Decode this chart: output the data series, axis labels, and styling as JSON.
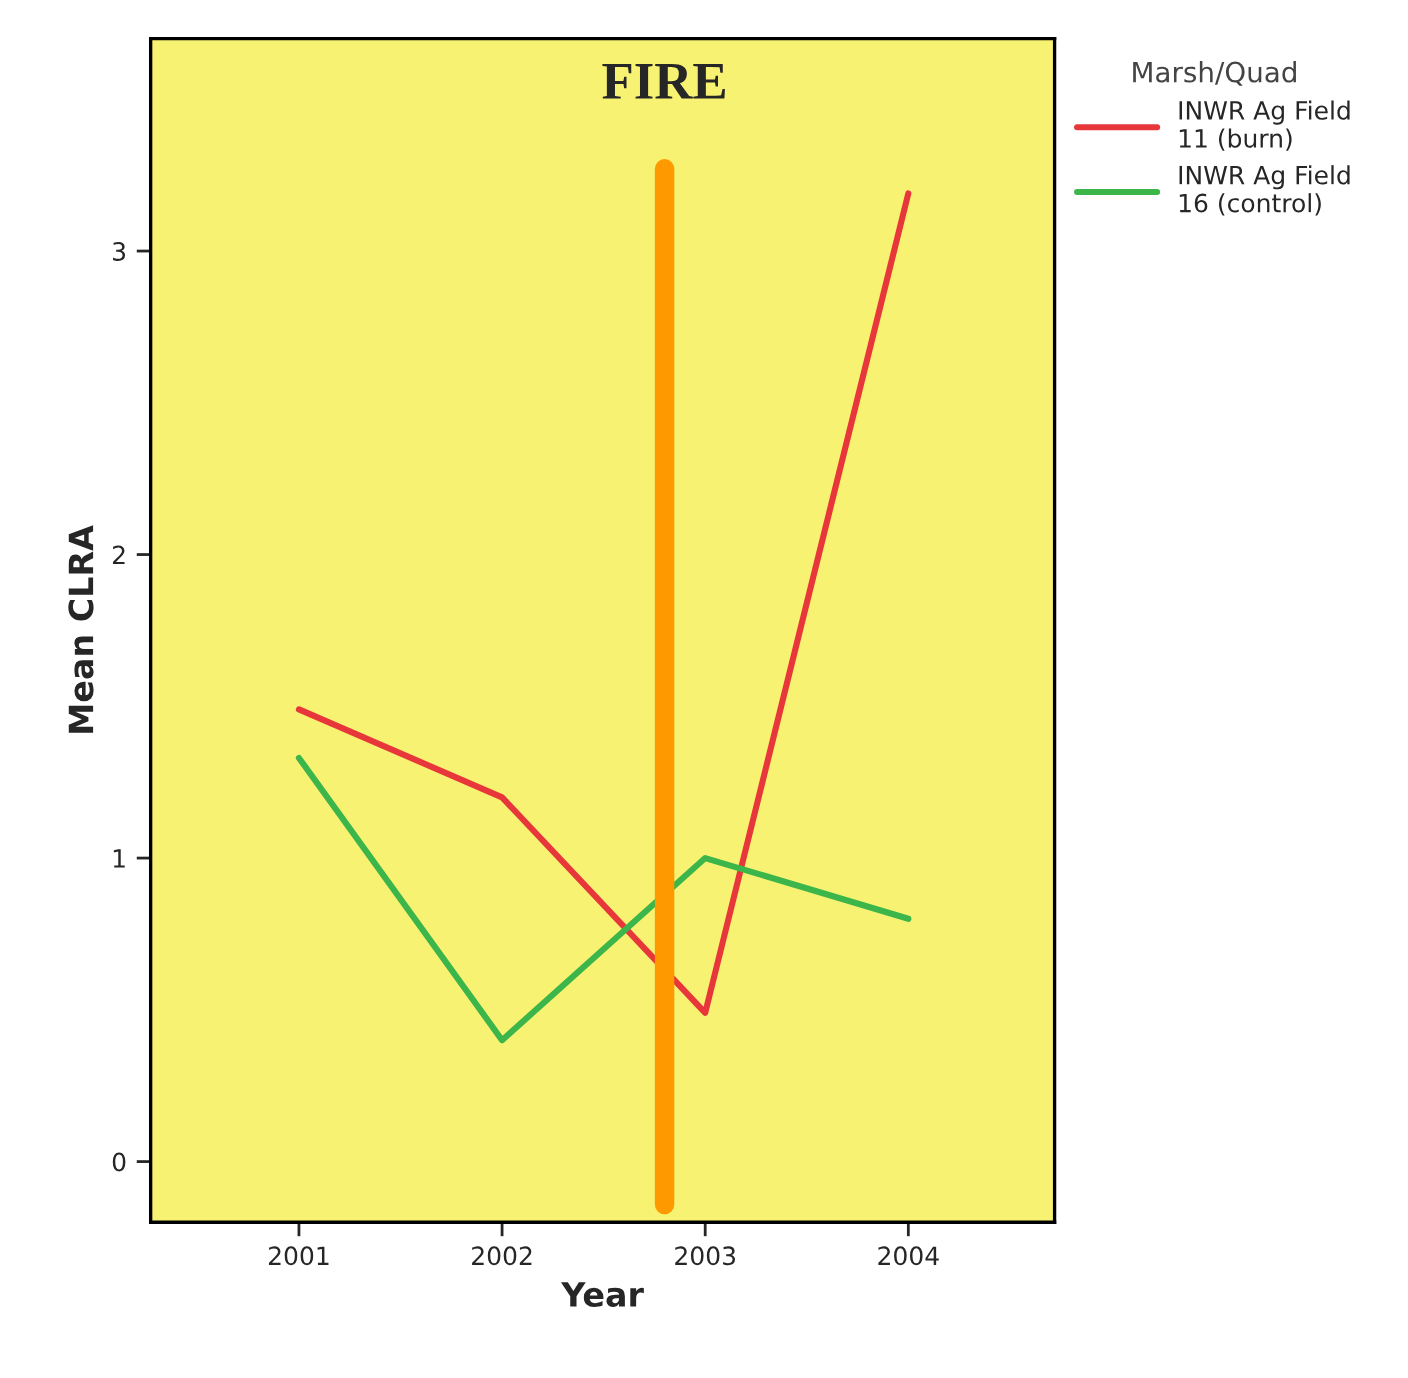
{
  "chart_data": {
    "type": "line",
    "xlabel": "Year",
    "ylabel": "Mean CLRA",
    "legend_title": "Marsh/Quad",
    "x": [
      2001,
      2002,
      2003,
      2004
    ],
    "xlim": [
      2000.27,
      2004.72
    ],
    "xticks": [
      2001,
      2002,
      2003,
      2004
    ],
    "ylim": [
      -0.2,
      3.7
    ],
    "yticks": [
      0,
      1,
      2,
      3
    ],
    "series": [
      {
        "name": "INWR Ag Field 11 (burn)",
        "color": "#e8373a",
        "values": [
          1.49,
          1.2,
          0.49,
          3.19
        ]
      },
      {
        "name": "INWR Ag Field 16 (control)",
        "color": "#3cb54a",
        "values": [
          1.33,
          0.4,
          1.0,
          0.8
        ]
      }
    ],
    "ref_lines": [
      {
        "axis": "x",
        "value": 2002.8,
        "label": "FIRE",
        "color": "#ff9900"
      }
    ],
    "grid": false,
    "legend": "top right",
    "marker": "none",
    "line_style": "solid"
  }
}
